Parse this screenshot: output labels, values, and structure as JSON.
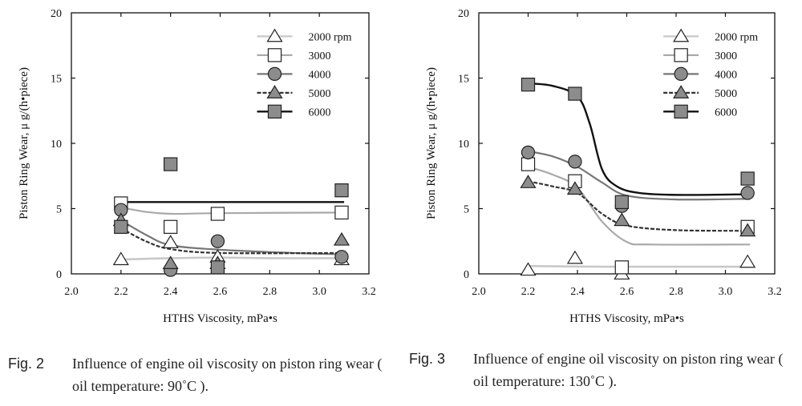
{
  "figures": [
    {
      "caption": {
        "number": "Fig. 2",
        "text": "Influence of engine oil viscosity on piston ring wear ( oil temperature: 90˚C )."
      }
    },
    {
      "caption": {
        "number": "Fig. 3",
        "text": "Influence of engine oil viscosity on piston ring wear ( oil temperature: 130˚C )."
      }
    }
  ],
  "chart_data": [
    {
      "type": "scatter",
      "xlabel": "HTHS Viscosity, mPa•s",
      "ylabel": "Piston Ring Wear, μ g/(h•piece)",
      "xlim": [
        2.0,
        3.2
      ],
      "ylim": [
        0,
        20
      ],
      "xticks": [
        "2.0",
        "2.2",
        "2.4",
        "2.6",
        "2.8",
        "3.0",
        "3.2"
      ],
      "yticks": [
        "0",
        "5",
        "10",
        "15",
        "20"
      ],
      "legend_position": "top-right",
      "series": [
        {
          "name": "2000 rpm",
          "marker": "triangle-open",
          "line": "#c8c8c8",
          "x": [
            2.2,
            2.4,
            2.59,
            3.09
          ],
          "y": [
            1.1,
            2.4,
            1.3,
            1.1
          ],
          "curve": [
            [
              2.2,
              1.1
            ],
            [
              2.4,
              1.2
            ],
            [
              2.6,
              1.25
            ],
            [
              2.8,
              1.2
            ],
            [
              3.1,
              1.2
            ]
          ]
        },
        {
          "name": "3000",
          "marker": "square-open",
          "line": "#a9a9a9",
          "x": [
            2.2,
            2.4,
            2.59,
            3.09
          ],
          "y": [
            5.4,
            3.6,
            4.6,
            4.7
          ],
          "curve": [
            [
              2.2,
              5.1
            ],
            [
              2.3,
              4.75
            ],
            [
              2.4,
              4.6
            ],
            [
              2.6,
              4.65
            ],
            [
              3.1,
              4.7
            ]
          ]
        },
        {
          "name": "4000",
          "marker": "circle",
          "line": "#777777",
          "x": [
            2.2,
            2.4,
            2.59,
            3.09
          ],
          "y": [
            4.9,
            0.3,
            2.5,
            1.3
          ],
          "curve": [
            [
              2.2,
              4.1
            ],
            [
              2.3,
              3.0
            ],
            [
              2.4,
              2.2
            ],
            [
              2.6,
              1.85
            ],
            [
              2.9,
              1.6
            ],
            [
              3.1,
              1.5
            ]
          ]
        },
        {
          "name": "5000",
          "marker": "triangle",
          "line": "#333333",
          "x": [
            2.2,
            2.4,
            2.59,
            3.09
          ],
          "y": [
            4.1,
            0.8,
            0.8,
            2.6
          ],
          "curve": [
            [
              2.2,
              3.5
            ],
            [
              2.3,
              2.5
            ],
            [
              2.4,
              1.9
            ],
            [
              2.6,
              1.6
            ],
            [
              3.1,
              1.6
            ]
          ]
        },
        {
          "name": "6000",
          "marker": "square",
          "line": "#111111",
          "x": [
            2.2,
            2.4,
            2.59,
            3.09
          ],
          "y": [
            3.6,
            8.4,
            0.5,
            6.4
          ],
          "curve": [
            [
              2.2,
              5.5
            ],
            [
              3.1,
              5.5
            ]
          ]
        }
      ]
    },
    {
      "type": "scatter",
      "xlabel": "HTHS Viscosity, mPa•s",
      "ylabel": "Piston Ring Wear, μ g/(h•piece)",
      "xlim": [
        2.0,
        3.2
      ],
      "ylim": [
        0,
        20
      ],
      "xticks": [
        "2.0",
        "2.2",
        "2.4",
        "2.6",
        "2.8",
        "3.0",
        "3.2"
      ],
      "yticks": [
        "0",
        "5",
        "10",
        "15",
        "20"
      ],
      "legend_position": "top-right",
      "series": [
        {
          "name": "2000 rpm",
          "marker": "triangle-open",
          "line": "#c8c8c8",
          "x": [
            2.2,
            2.39,
            2.58,
            3.09
          ],
          "y": [
            0.3,
            1.2,
            0.0,
            0.9
          ],
          "curve": [
            [
              2.2,
              0.6
            ],
            [
              2.5,
              0.55
            ],
            [
              2.8,
              0.55
            ],
            [
              3.1,
              0.55
            ]
          ]
        },
        {
          "name": "3000",
          "marker": "square-open",
          "line": "#a9a9a9",
          "x": [
            2.2,
            2.39,
            2.58,
            3.09
          ],
          "y": [
            8.4,
            7.1,
            0.5,
            3.6
          ],
          "curve": [
            [
              2.2,
              8.2
            ],
            [
              2.3,
              7.6
            ],
            [
              2.4,
              6.6
            ],
            [
              2.5,
              4.0
            ],
            [
              2.6,
              2.45
            ],
            [
              2.7,
              2.25
            ],
            [
              3.1,
              2.25
            ]
          ]
        },
        {
          "name": "4000",
          "marker": "circle",
          "line": "#777777",
          "x": [
            2.2,
            2.39,
            2.58,
            3.09
          ],
          "y": [
            9.3,
            8.6,
            5.2,
            6.2
          ],
          "curve": [
            [
              2.2,
              9.4
            ],
            [
              2.3,
              9.0
            ],
            [
              2.4,
              8.2
            ],
            [
              2.5,
              7.0
            ],
            [
              2.6,
              6.0
            ],
            [
              2.8,
              5.7
            ],
            [
              3.1,
              5.75
            ]
          ]
        },
        {
          "name": "5000",
          "marker": "triangle",
          "line": "#333333",
          "x": [
            2.2,
            2.39,
            2.58,
            3.09
          ],
          "y": [
            7.0,
            6.5,
            4.1,
            3.3
          ],
          "curve": [
            [
              2.2,
              7.1
            ],
            [
              2.3,
              6.7
            ],
            [
              2.4,
              6.2
            ],
            [
              2.5,
              4.6
            ],
            [
              2.6,
              3.7
            ],
            [
              2.8,
              3.35
            ],
            [
              3.1,
              3.3
            ]
          ]
        },
        {
          "name": "6000",
          "marker": "square",
          "line": "#111111",
          "x": [
            2.2,
            2.39,
            2.58,
            3.09
          ],
          "y": [
            14.5,
            13.8,
            5.5,
            7.3
          ],
          "curve": [
            [
              2.2,
              14.6
            ],
            [
              2.3,
              14.4
            ],
            [
              2.4,
              13.6
            ],
            [
              2.45,
              11.5
            ],
            [
              2.5,
              8.0
            ],
            [
              2.56,
              6.7
            ],
            [
              2.65,
              6.2
            ],
            [
              2.8,
              6.05
            ],
            [
              3.1,
              6.1
            ]
          ]
        }
      ]
    }
  ]
}
